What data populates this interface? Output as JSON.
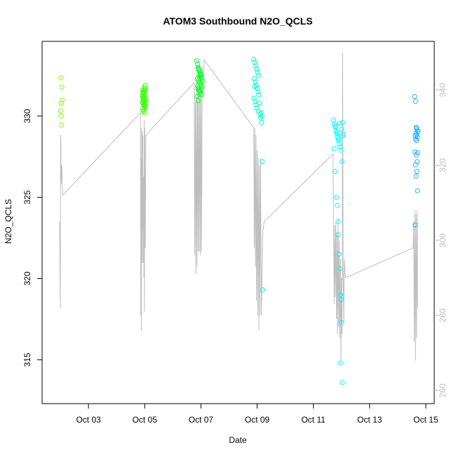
{
  "chart_data": {
    "type": "scatter",
    "title": "ATOM3 Southbound N2O_QCLS",
    "xlabel": "Date",
    "ylabel": "N2O_QCLS",
    "x_ticks": [
      "Oct 03",
      "Oct 05",
      "Oct 07",
      "Oct 09",
      "Oct 11",
      "Oct 13",
      "Oct 15"
    ],
    "x_tick_days": [
      3,
      5,
      7,
      9,
      11,
      13,
      15
    ],
    "xlim_days": [
      1.35,
      15.3
    ],
    "y_ticks": [
      315,
      320,
      325,
      330
    ],
    "ylim": [
      312.3,
      334.6
    ],
    "y2_ticks": [
      260,
      280,
      300,
      320,
      340
    ],
    "y2lim": [
      256.5,
      353.0
    ],
    "grid": false,
    "legend": "none",
    "colors": {
      "points_oct02": "#80ff00",
      "points_oct05": "#33ff00",
      "points_oct07": "#00ff22",
      "points_oct09": "#00ffcc",
      "points_oct12": "#00ffff",
      "points_oct15": "#1ab2ff",
      "line": "#bebebe",
      "axis": "#000000",
      "right_axis": "#bebebe"
    },
    "series": [
      {
        "color": "#80ff00",
        "x": [
          2.02,
          2.05,
          2.03,
          2.06,
          2.01,
          2.04,
          2.03
        ],
        "y": [
          332.35,
          331.78,
          330.78,
          330.98,
          330.32,
          329.45,
          330.0
        ]
      },
      {
        "color": "#33ff00",
        "x": [
          4.93,
          4.97,
          5.0,
          5.02,
          4.95,
          4.98,
          4.92,
          5.04,
          4.96,
          4.99,
          5.01,
          4.94,
          4.97,
          5.03,
          4.91,
          4.95,
          5.0,
          4.98,
          4.93,
          5.02,
          4.96,
          4.99,
          5.05,
          4.94,
          5.01,
          4.97,
          4.92,
          5.03,
          4.95
        ],
        "y": [
          331.6,
          331.45,
          331.55,
          331.3,
          331.1,
          330.95,
          331.2,
          331.05,
          331.4,
          331.75,
          331.9,
          330.8,
          330.7,
          330.6,
          330.85,
          331.0,
          331.15,
          330.5,
          330.4,
          330.75,
          330.3,
          330.2,
          330.9,
          331.25,
          331.65,
          330.65,
          331.35,
          330.55,
          331.5
        ]
      },
      {
        "color": "#00ff22",
        "x": [
          6.85,
          6.88,
          6.9,
          6.92,
          6.95,
          6.97,
          7.0,
          7.02,
          6.87,
          6.91,
          6.94,
          6.98,
          7.01,
          7.04,
          6.89,
          6.93,
          6.96,
          6.99,
          7.03,
          6.86,
          6.92,
          6.97,
          7.05,
          6.9,
          6.95,
          7.0,
          6.88,
          7.02,
          6.94
        ],
        "y": [
          333.4,
          333.2,
          333.0,
          332.9,
          332.75,
          332.6,
          332.5,
          332.4,
          332.3,
          332.2,
          332.1,
          332.0,
          331.9,
          331.8,
          331.7,
          331.6,
          331.5,
          331.4,
          331.3,
          331.2,
          332.85,
          332.55,
          332.15,
          330.95,
          331.55,
          332.25,
          331.85,
          331.65,
          332.45
        ]
      },
      {
        "color": "#00ffcc",
        "x": [
          8.88,
          8.92,
          8.95,
          8.98,
          9.02,
          9.05,
          8.9,
          8.94,
          8.97,
          9.0,
          9.03,
          9.06,
          8.89,
          8.93,
          8.96,
          8.99,
          9.04,
          9.1,
          9.12,
          9.15,
          9.18,
          9.2,
          8.91,
          9.08,
          9.14,
          9.17
        ],
        "y": [
          333.5,
          333.3,
          333.1,
          332.9,
          332.7,
          332.5,
          332.3,
          332.1,
          331.9,
          331.7,
          331.5,
          331.3,
          331.1,
          330.9,
          330.7,
          330.5,
          330.3,
          330.1,
          329.9,
          329.6,
          327.2,
          319.3,
          331.8,
          330.8,
          330.2,
          330.0
        ]
      },
      {
        "color": "#00ffff",
        "x": [
          11.72,
          11.75,
          11.78,
          11.8,
          11.83,
          11.86,
          11.89,
          11.92,
          11.95,
          11.98,
          12.01,
          12.04,
          11.74,
          11.77,
          11.82,
          11.85,
          11.88,
          11.91,
          11.94,
          11.97,
          12.0,
          12.03,
          12.06,
          11.79,
          11.84,
          11.9,
          11.96,
          12.02,
          11.99,
          11.87,
          11.93,
          12.05
        ],
        "y": [
          329.75,
          329.5,
          329.3,
          329.1,
          328.9,
          328.7,
          328.5,
          328.3,
          328.1,
          327.9,
          329.2,
          329.6,
          328.0,
          326.6,
          325.0,
          324.5,
          323.5,
          321.5,
          320.6,
          319.0,
          317.3,
          313.6,
          328.9,
          329.4,
          329.0,
          328.6,
          314.8,
          327.2,
          318.7,
          322.7,
          329.55,
          328.8
        ]
      },
      {
        "color": "#1ab2ff",
        "x": [
          14.6,
          14.63,
          14.66,
          14.69,
          14.72,
          14.65,
          14.68,
          14.62,
          14.7,
          14.64,
          14.67,
          14.61,
          14.71,
          14.66,
          14.69,
          14.63,
          14.68,
          14.65,
          14.7,
          14.62,
          14.67
        ],
        "y": [
          331.2,
          330.9,
          329.3,
          329.15,
          329.05,
          328.95,
          328.85,
          328.8,
          328.7,
          328.6,
          328.5,
          327.8,
          327.75,
          327.6,
          327.2,
          327.0,
          326.6,
          326.3,
          325.4,
          323.3,
          329.25
        ]
      }
    ],
    "line_series": [
      {
        "axis": "right",
        "x": [
          1.97,
          2.0,
          2.01,
          2.02,
          2.03,
          2.05,
          2.08,
          4.85,
          4.86,
          4.87,
          4.88,
          4.89,
          4.9,
          4.91,
          4.92,
          4.93,
          4.94,
          4.95,
          4.96,
          4.97,
          4.98,
          4.99,
          5.0,
          5.01,
          5.02,
          5.04,
          6.76,
          6.78,
          6.8,
          6.82,
          6.84,
          6.86,
          6.88,
          6.9,
          6.92,
          6.94,
          6.96,
          6.98,
          7.0,
          7.02,
          7.05,
          7.08,
          7.12,
          8.88,
          8.9,
          8.92,
          8.94,
          8.96,
          8.98,
          9.0,
          9.02,
          9.04,
          9.06,
          9.08,
          9.1,
          9.12,
          9.15,
          9.2,
          9.25,
          11.7,
          11.74,
          11.76,
          11.78,
          11.8,
          11.82,
          11.84,
          11.86,
          11.88,
          11.9,
          11.92,
          11.94,
          11.96,
          11.98,
          12.0,
          12.02,
          12.04,
          12.06,
          12.08,
          12.1,
          12.14,
          14.55,
          14.57,
          14.59,
          14.61,
          14.63,
          14.65,
          14.67,
          14.69,
          14.71
        ],
        "y": [
          305,
          282,
          328,
          326,
          315,
          320,
          312,
          334,
          280,
          322,
          276,
          330,
          294,
          329,
          303,
          328,
          294,
          300,
          317,
          290,
          332,
          281,
          330,
          301,
          298,
          328,
          342,
          296,
          337,
          291,
          343,
          293,
          341,
          297,
          340,
          297,
          339,
          296,
          344,
          297,
          346,
          343,
          348,
          330,
          298,
          330,
          293,
          328,
          284,
          324,
          280,
          322,
          276,
          320,
          280,
          322,
          280,
          302,
          305,
          323,
          283,
          304,
          285,
          305,
          279,
          302,
          275,
          306,
          277,
          300,
          274,
          295,
          268,
          290,
          275,
          350,
          292,
          278,
          295,
          290,
          298,
          305,
          273,
          308,
          268,
          307,
          274,
          308,
          282
        ]
      }
    ]
  }
}
